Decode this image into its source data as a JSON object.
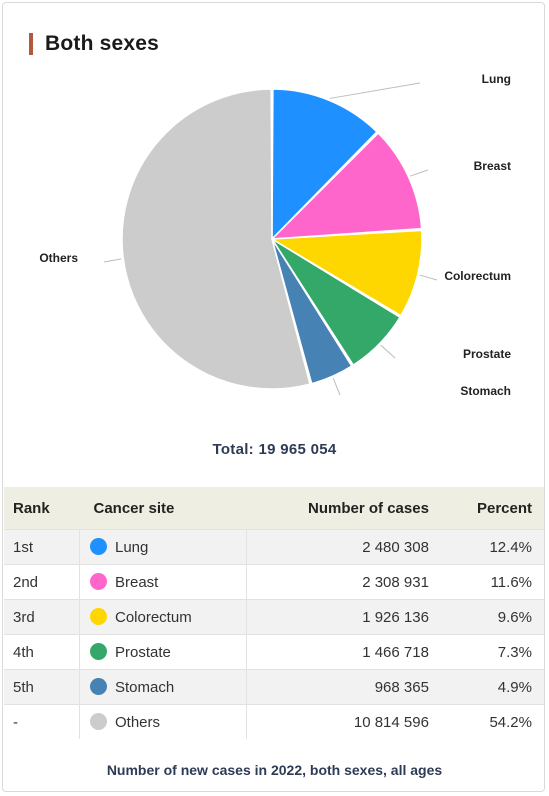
{
  "header": {
    "title": "Both sexes"
  },
  "chart_data": {
    "type": "pie",
    "title": "Both sexes",
    "slices": [
      {
        "label": "Lung",
        "value": 2480308,
        "percent": 12.4,
        "color": "#1e90ff"
      },
      {
        "label": "Breast",
        "value": 2308931,
        "percent": 11.6,
        "color": "#ff66cc"
      },
      {
        "label": "Colorectum",
        "value": 1926136,
        "percent": 9.6,
        "color": "#ffd700"
      },
      {
        "label": "Prostate",
        "value": 1466718,
        "percent": 7.3,
        "color": "#34a868"
      },
      {
        "label": "Stomach",
        "value": 968365,
        "percent": 4.9,
        "color": "#4682b4"
      },
      {
        "label": "Others",
        "value": 10814596,
        "percent": 54.2,
        "color": "#cccccc"
      }
    ],
    "total_text": "Total: 19 965 054"
  },
  "table": {
    "headers": {
      "rank": "Rank",
      "site": "Cancer site",
      "cases": "Number of cases",
      "percent": "Percent"
    },
    "rows": [
      {
        "rank": "1st",
        "site": "Lung",
        "cases": "2 480 308",
        "percent": "12.4%",
        "color": "#1e90ff"
      },
      {
        "rank": "2nd",
        "site": "Breast",
        "cases": "2 308 931",
        "percent": "11.6%",
        "color": "#ff66cc"
      },
      {
        "rank": "3rd",
        "site": "Colorectum",
        "cases": "1 926 136",
        "percent": "9.6%",
        "color": "#ffd700"
      },
      {
        "rank": "4th",
        "site": "Prostate",
        "cases": "1 466 718",
        "percent": "7.3%",
        "color": "#34a868"
      },
      {
        "rank": "5th",
        "site": "Stomach",
        "cases": "968 365",
        "percent": "4.9%",
        "color": "#4682b4"
      },
      {
        "rank": "-",
        "site": "Others",
        "cases": "10 814 596",
        "percent": "54.2%",
        "color": "#cccccc"
      }
    ]
  },
  "caption": "Number of new cases in 2022, both sexes, all ages"
}
